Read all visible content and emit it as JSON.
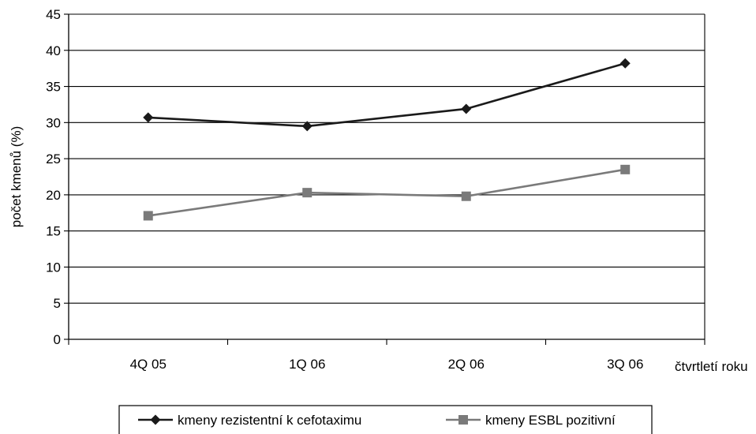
{
  "chart_data": {
    "type": "line",
    "title": "",
    "ylabel": "počet kmenů (%)",
    "xlabel": "čtvrtletí roku",
    "categories": [
      "4Q 05",
      "1Q 06",
      "2Q 06",
      "3Q 06"
    ],
    "ylim": [
      0,
      45
    ],
    "yticks": [
      0,
      5,
      10,
      15,
      20,
      25,
      30,
      35,
      40,
      45
    ],
    "grid": true,
    "legend_position": "bottom",
    "series": [
      {
        "name": "kmeny rezistentní k cefotaximu",
        "values": [
          30.7,
          29.5,
          31.9,
          38.2
        ],
        "color": "#1a1a1a",
        "marker": "diamond"
      },
      {
        "name": "kmeny ESBL pozitivní",
        "values": [
          17.1,
          20.3,
          19.8,
          23.5
        ],
        "color": "#7a7a7a",
        "marker": "square"
      }
    ]
  }
}
